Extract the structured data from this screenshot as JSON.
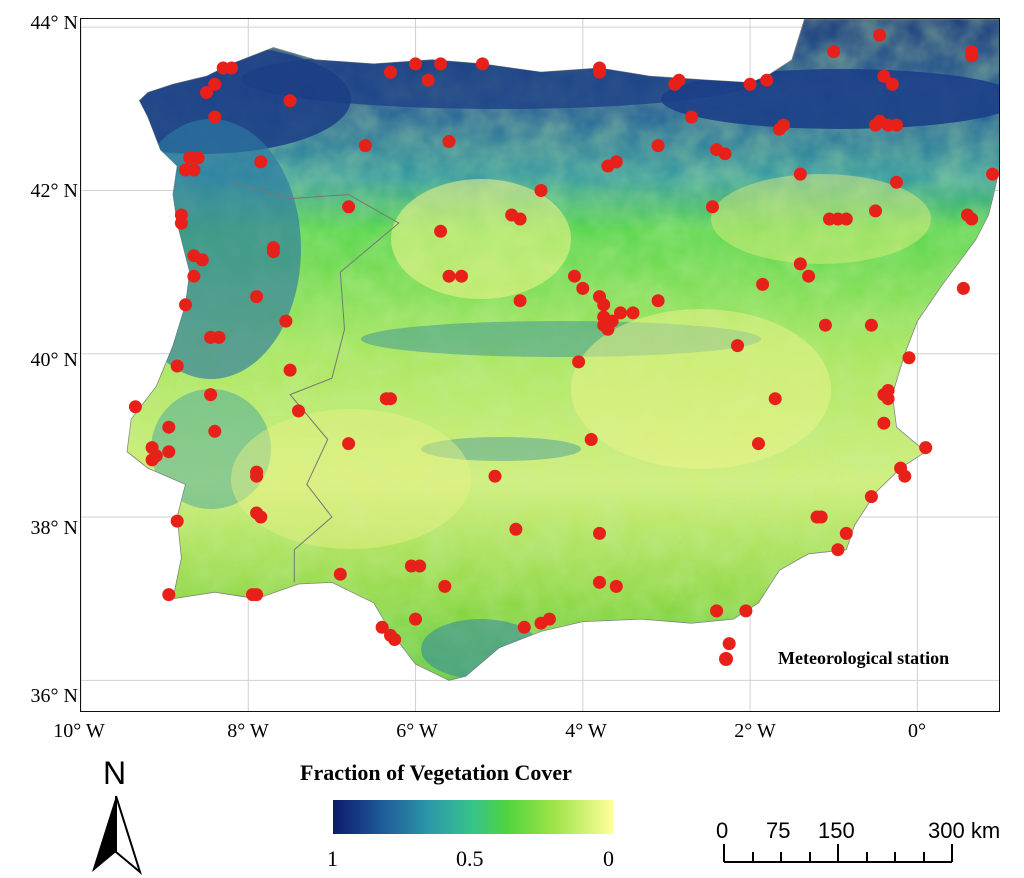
{
  "map": {
    "lat_labels": [
      "44° N",
      "42° N",
      "40° N",
      "38° N",
      "36° N"
    ],
    "lon_labels": [
      "10° W",
      "8° W",
      "6° W",
      "4° W",
      "2° W",
      "0°"
    ],
    "extent": {
      "lon_min": -10.0,
      "lon_max": 1.0,
      "lat_min": 35.6,
      "lat_max": 44.1
    },
    "ticks_lat": [
      44,
      42,
      40,
      38,
      36
    ],
    "ticks_lon": [
      -10,
      -8,
      -6,
      -4,
      -2,
      0
    ],
    "grid": true,
    "colors": {
      "station": "#e8201a",
      "sea": "#ffffff",
      "high_fvc": "#0d1a6b",
      "low_fvc": "#ffff9a"
    }
  },
  "legend": {
    "title": "Fraction of Vegetation Cover",
    "cb_left": "1",
    "cb_mid": "0.5",
    "cb_right": "0",
    "station_label": "Meteorological station"
  },
  "scale": {
    "labels": [
      "0",
      "75",
      "150",
      "300 km"
    ]
  },
  "north": {
    "letter": "N"
  },
  "stations": [
    [
      -0.45,
      43.9
    ],
    [
      0.65,
      43.65
    ],
    [
      0.65,
      43.7
    ],
    [
      -1.0,
      43.7
    ],
    [
      -0.4,
      43.4
    ],
    [
      -0.3,
      43.3
    ],
    [
      -1.8,
      43.35
    ],
    [
      -2.0,
      43.3
    ],
    [
      -2.85,
      43.35
    ],
    [
      -2.9,
      43.3
    ],
    [
      -3.8,
      43.45
    ],
    [
      -3.8,
      43.5
    ],
    [
      -5.2,
      43.55
    ],
    [
      -5.7,
      43.55
    ],
    [
      -6.0,
      43.55
    ],
    [
      -5.85,
      43.35
    ],
    [
      -6.3,
      43.45
    ],
    [
      -7.5,
      43.1
    ],
    [
      -8.2,
      43.5
    ],
    [
      -8.3,
      43.5
    ],
    [
      -8.4,
      43.3
    ],
    [
      -8.5,
      43.2
    ],
    [
      -8.4,
      42.9
    ],
    [
      -8.6,
      42.4
    ],
    [
      -8.7,
      42.4
    ],
    [
      -8.65,
      42.25
    ],
    [
      -8.75,
      42.25
    ],
    [
      -7.85,
      42.35
    ],
    [
      -0.5,
      42.8
    ],
    [
      -0.35,
      42.8
    ],
    [
      -0.25,
      42.8
    ],
    [
      -0.45,
      42.85
    ],
    [
      -1.6,
      42.8
    ],
    [
      -1.65,
      42.75
    ],
    [
      -2.7,
      42.9
    ],
    [
      -3.1,
      42.55
    ],
    [
      -2.4,
      42.5
    ],
    [
      -2.3,
      42.45
    ],
    [
      -3.6,
      42.35
    ],
    [
      -3.7,
      42.3
    ],
    [
      -5.6,
      42.6
    ],
    [
      -6.6,
      42.55
    ],
    [
      -4.5,
      42.0
    ],
    [
      -1.4,
      42.2
    ],
    [
      -0.25,
      42.1
    ],
    [
      0.9,
      42.2
    ],
    [
      -8.8,
      41.7
    ],
    [
      -8.8,
      41.6
    ],
    [
      -7.7,
      41.3
    ],
    [
      -7.7,
      41.25
    ],
    [
      -6.8,
      41.8
    ],
    [
      -5.7,
      41.5
    ],
    [
      -4.85,
      41.7
    ],
    [
      -4.75,
      41.65
    ],
    [
      -2.45,
      41.8
    ],
    [
      -1.05,
      41.65
    ],
    [
      -0.95,
      41.65
    ],
    [
      -0.85,
      41.65
    ],
    [
      -0.5,
      41.75
    ],
    [
      0.6,
      41.7
    ],
    [
      0.65,
      41.65
    ],
    [
      -8.65,
      41.2
    ],
    [
      -8.55,
      41.15
    ],
    [
      -8.65,
      40.95
    ],
    [
      -8.75,
      40.6
    ],
    [
      -7.9,
      40.7
    ],
    [
      -7.55,
      40.4
    ],
    [
      -8.45,
      40.2
    ],
    [
      -8.35,
      40.2
    ],
    [
      -5.6,
      40.95
    ],
    [
      -5.45,
      40.95
    ],
    [
      -4.1,
      40.95
    ],
    [
      -4.0,
      40.8
    ],
    [
      -4.75,
      40.65
    ],
    [
      -3.8,
      40.7
    ],
    [
      -3.75,
      40.6
    ],
    [
      -3.75,
      40.45
    ],
    [
      -3.75,
      40.35
    ],
    [
      -3.65,
      40.4
    ],
    [
      -3.55,
      40.5
    ],
    [
      -3.4,
      40.5
    ],
    [
      -3.7,
      40.3
    ],
    [
      -3.1,
      40.65
    ],
    [
      -1.85,
      40.85
    ],
    [
      -1.4,
      41.1
    ],
    [
      -1.3,
      40.95
    ],
    [
      -1.1,
      40.35
    ],
    [
      -0.55,
      40.35
    ],
    [
      0.55,
      40.8
    ],
    [
      -8.85,
      39.85
    ],
    [
      -7.5,
      39.8
    ],
    [
      -6.35,
      39.45
    ],
    [
      -6.3,
      39.45
    ],
    [
      -8.45,
      39.5
    ],
    [
      -9.35,
      39.35
    ],
    [
      -7.4,
      39.3
    ],
    [
      -4.05,
      39.9
    ],
    [
      -2.15,
      40.1
    ],
    [
      -1.7,
      39.45
    ],
    [
      -0.35,
      39.55
    ],
    [
      -0.35,
      39.45
    ],
    [
      -0.4,
      39.5
    ],
    [
      -0.1,
      39.95
    ],
    [
      -0.4,
      39.15
    ],
    [
      -9.15,
      38.85
    ],
    [
      -9.1,
      38.75
    ],
    [
      -9.15,
      38.7
    ],
    [
      -8.95,
      38.8
    ],
    [
      -8.95,
      39.1
    ],
    [
      -8.4,
      39.05
    ],
    [
      -6.8,
      38.9
    ],
    [
      -5.05,
      38.5
    ],
    [
      -3.9,
      38.95
    ],
    [
      -1.9,
      38.9
    ],
    [
      -0.2,
      38.6
    ],
    [
      -0.15,
      38.5
    ],
    [
      0.1,
      38.85
    ],
    [
      -0.55,
      38.25
    ],
    [
      -7.9,
      38.55
    ],
    [
      -7.9,
      38.5
    ],
    [
      -8.85,
      37.95
    ],
    [
      -7.9,
      38.05
    ],
    [
      -7.85,
      38.0
    ],
    [
      -4.8,
      37.85
    ],
    [
      -3.8,
      37.8
    ],
    [
      -1.2,
      38.0
    ],
    [
      -1.15,
      38.0
    ],
    [
      -0.85,
      37.8
    ],
    [
      -0.95,
      37.6
    ],
    [
      -6.9,
      37.3
    ],
    [
      -6.05,
      37.4
    ],
    [
      -5.95,
      37.4
    ],
    [
      -5.65,
      37.15
    ],
    [
      -3.8,
      37.2
    ],
    [
      -3.6,
      37.15
    ],
    [
      -8.95,
      37.05
    ],
    [
      -7.95,
      37.05
    ],
    [
      -7.9,
      37.05
    ],
    [
      -6.0,
      36.75
    ],
    [
      -6.3,
      36.55
    ],
    [
      -6.25,
      36.5
    ],
    [
      -6.4,
      36.65
    ],
    [
      -4.5,
      36.7
    ],
    [
      -4.4,
      36.75
    ],
    [
      -4.7,
      36.65
    ],
    [
      -2.4,
      36.85
    ],
    [
      -2.05,
      36.85
    ],
    [
      -2.25,
      36.45
    ]
  ]
}
